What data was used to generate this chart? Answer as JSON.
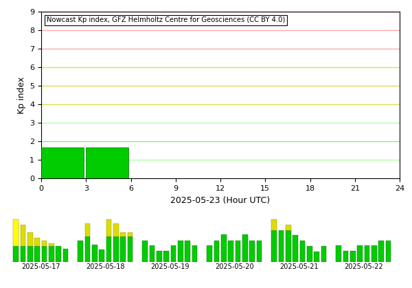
{
  "title": "Nowcast Kp index, GFZ Helmholtz Centre for Geosciences (CC BY 4.0)",
  "xlabel": "2025-05-23 (Hour UTC)",
  "ylabel": "Kp index",
  "main_bars": [
    1.67,
    1.67,
    0,
    0,
    0,
    0,
    0,
    0
  ],
  "xlim": [
    0,
    24
  ],
  "ylim": [
    0,
    9.5
  ],
  "ylim_display": [
    0,
    9
  ],
  "xticks": [
    0,
    3,
    6,
    9,
    12,
    15,
    18,
    21,
    24
  ],
  "yticks": [
    0,
    1,
    2,
    3,
    4,
    5,
    6,
    7,
    8,
    9
  ],
  "hlines": [
    {
      "y": 1,
      "color": "#aaffaa"
    },
    {
      "y": 2,
      "color": "#88ee88"
    },
    {
      "y": 3,
      "color": "#aaffaa"
    },
    {
      "y": 4,
      "color": "#dddd55"
    },
    {
      "y": 5,
      "color": "#dddd55"
    },
    {
      "y": 6,
      "color": "#dddd55"
    },
    {
      "y": 7,
      "color": "#ffaaaa"
    },
    {
      "y": 8,
      "color": "#ffaaaa"
    },
    {
      "y": 9,
      "color": "#ffaaaa"
    }
  ],
  "mini_dates": [
    "2025-05-17",
    "2025-05-18",
    "2025-05-19",
    "2025-05-20",
    "2025-05-21",
    "2025-05-22"
  ],
  "mini_data": [
    [
      5.33,
      4.67,
      3.67,
      3.0,
      2.67,
      2.33,
      2.0,
      1.67
    ],
    [
      1.67,
      3.0,
      1.33,
      1.0,
      3.33,
      3.0,
      2.33,
      2.33
    ],
    [
      1.33,
      1.0,
      0.67,
      0.67,
      1.0,
      1.33,
      1.33,
      1.0
    ],
    [
      1.0,
      1.33,
      1.67,
      1.33,
      1.33,
      1.67,
      1.33,
      1.33
    ],
    [
      2.67,
      2.0,
      2.33,
      1.67,
      1.33,
      1.0,
      0.67,
      1.0
    ],
    [
      1.0,
      0.67,
      0.67,
      1.0,
      1.0,
      1.0,
      1.33,
      1.33
    ]
  ],
  "kp_threshold_yellow": 5.0,
  "kp_threshold_green": 2.0,
  "bg_color": "#ffffff",
  "main_bar_color": "#00cc00",
  "main_bar_edge": "#006600"
}
